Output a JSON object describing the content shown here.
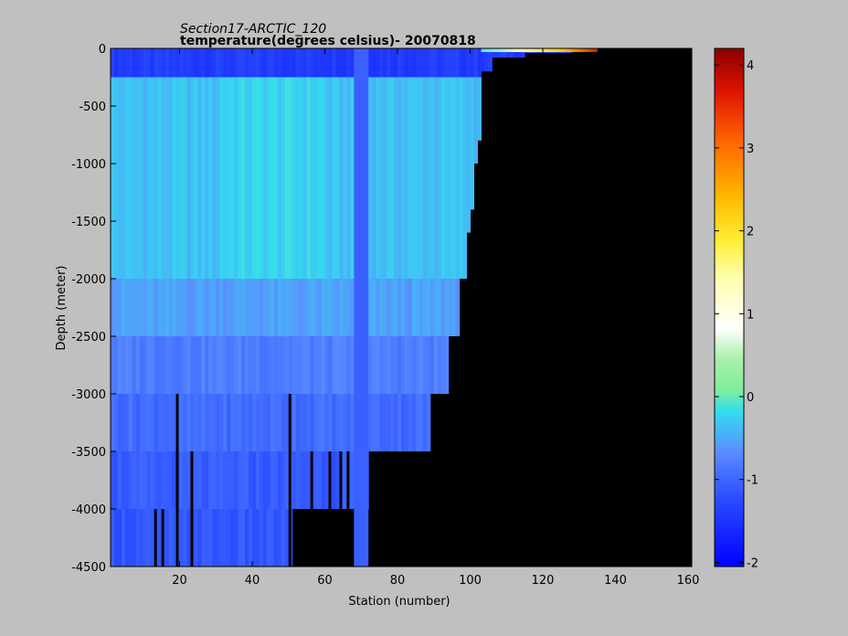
{
  "chart_data": {
    "type": "heatmap",
    "title": "Section17-ARCTIC_120",
    "subtitle": "temperature(degrees  celsius)- 20070818",
    "xlabel": "Station (number)",
    "ylabel": "Depth (meter)",
    "xlim": [
      1,
      161
    ],
    "ylim": [
      -4500,
      0
    ],
    "x_ticks": [
      "20",
      "40",
      "60",
      "80",
      "100",
      "120",
      "140",
      "160"
    ],
    "y_ticks": [
      "0",
      "-500",
      "-1000",
      "-1500",
      "-2000",
      "-2500",
      "-3000",
      "-3500",
      "-4000",
      "-4500"
    ],
    "colorbar": {
      "range": [
        -2.05,
        4.2
      ],
      "ticks": [
        "-2",
        "-1",
        "0",
        "1",
        "2",
        "3",
        "4"
      ],
      "colormap": "jet-like"
    },
    "background_color": "#000000",
    "layers": [
      {
        "depth_top": 0,
        "depth_bottom": -250,
        "value": -1.4
      },
      {
        "depth_top": -250,
        "depth_bottom": -2000,
        "value": -0.35
      },
      {
        "depth_top": -2000,
        "depth_bottom": -2500,
        "value": -0.55
      },
      {
        "depth_top": -2500,
        "depth_bottom": -3000,
        "value": -0.8
      },
      {
        "depth_top": -3000,
        "depth_bottom": -3500,
        "value": -0.95
      },
      {
        "depth_top": -3500,
        "depth_bottom": -4000,
        "value": -1.1
      },
      {
        "depth_top": -4000,
        "depth_bottom": -4500,
        "value": -1.15
      }
    ],
    "bottom_profile": [
      {
        "x": 1,
        "depth": -4500
      },
      {
        "x": 51,
        "depth": -4500
      },
      {
        "x": 51,
        "depth": -4000
      },
      {
        "x": 71,
        "depth": -4000
      },
      {
        "x": 72,
        "depth": -3500
      },
      {
        "x": 89,
        "depth": -3500
      },
      {
        "x": 89,
        "depth": -3000
      },
      {
        "x": 94,
        "depth": -3000
      },
      {
        "x": 94,
        "depth": -2500
      },
      {
        "x": 97,
        "depth": -2500
      },
      {
        "x": 97,
        "depth": -2000
      },
      {
        "x": 99,
        "depth": -2000
      },
      {
        "x": 99,
        "depth": -1600
      },
      {
        "x": 100,
        "depth": -1400
      },
      {
        "x": 101,
        "depth": -1300
      },
      {
        "x": 101,
        "depth": -1000
      },
      {
        "x": 102,
        "depth": -800
      },
      {
        "x": 103,
        "depth": -400
      },
      {
        "x": 103,
        "depth": -200
      },
      {
        "x": 106,
        "depth": -80
      },
      {
        "x": 115,
        "depth": -40
      },
      {
        "x": 128,
        "depth": -20
      },
      {
        "x": 135,
        "depth": 0
      }
    ],
    "warm_surface": {
      "x_start": 103,
      "x_end": 135,
      "value_max": 3.5
    },
    "vertical_bar": {
      "x_start": 68,
      "x_end": 72,
      "value": -1.05
    },
    "black_gaps": [
      {
        "x": 19,
        "depth_top": -3000,
        "depth_bottom": -4500
      },
      {
        "x": 50,
        "depth_top": -3000,
        "depth_bottom": -4500
      },
      {
        "x": 56,
        "depth_top": -3500,
        "depth_bottom": -4000
      },
      {
        "x": 61,
        "depth_top": -3500,
        "depth_bottom": -4000
      },
      {
        "x": 64,
        "depth_top": -3500,
        "depth_bottom": -4000
      },
      {
        "x": 66,
        "depth_top": -3500,
        "depth_bottom": -4000
      },
      {
        "x": 13,
        "depth_top": -4000,
        "depth_bottom": -4500
      },
      {
        "x": 15,
        "depth_top": -4000,
        "depth_bottom": -4500
      },
      {
        "x": 23,
        "depth_top": -3500,
        "depth_bottom": -4500
      }
    ]
  }
}
